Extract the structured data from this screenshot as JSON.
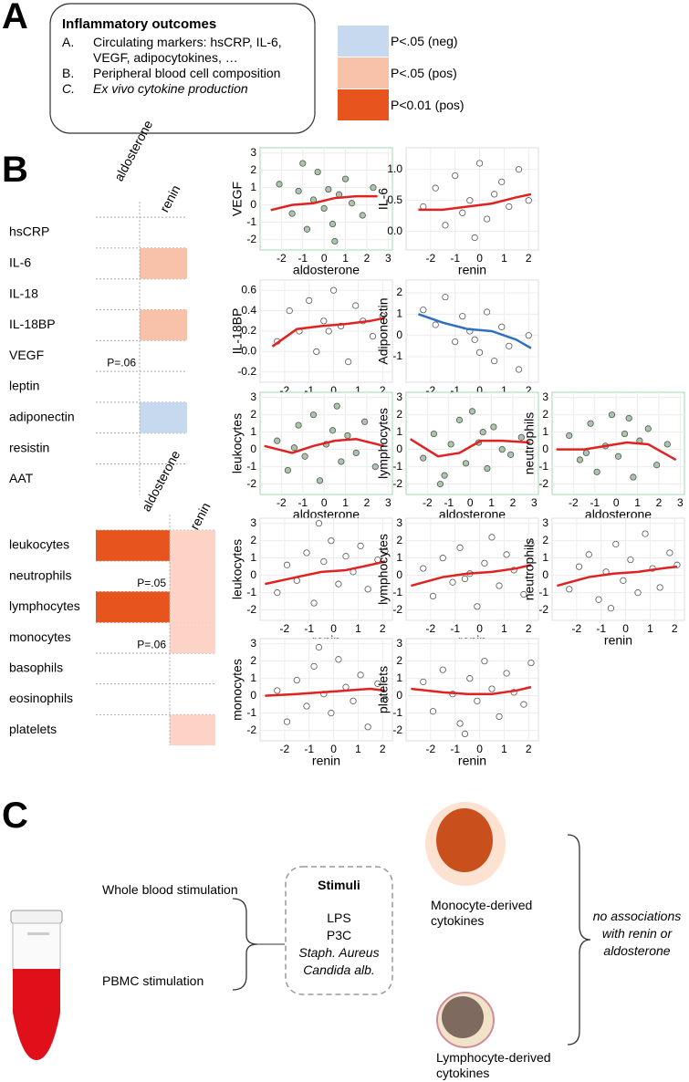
{
  "panel_a": {
    "label": "A",
    "title": "Inflammatory outcomes",
    "items": [
      {
        "marker": "A.",
        "text": "Circulating markers: hsCRP, IL-6, VEGF, adipocytokines, …"
      },
      {
        "marker": "B.",
        "text": "Peripheral blood cell composition"
      },
      {
        "marker": "C.",
        "text": "Ex vivo cytokine production"
      }
    ],
    "legend": [
      {
        "label": "P<.05 (neg)",
        "color": "#c6d9ef"
      },
      {
        "label": "P<.05 (pos)",
        "color": "#f8c1aa"
      },
      {
        "label": "P<0.01 (pos)",
        "color": "#e8541e"
      }
    ]
  },
  "panel_b": {
    "label": "B",
    "table1": {
      "columns": [
        "aldosterone",
        "renin"
      ],
      "rows": [
        "hsCRP",
        "IL-6",
        "IL-18",
        "IL-18BP",
        "VEGF",
        "leptin",
        "adiponectin",
        "resistin",
        "AAT"
      ],
      "cells": [
        {
          "row": 1,
          "col": 1,
          "color": "#f8c1aa"
        },
        {
          "row": 3,
          "col": 1,
          "color": "#f8c1aa"
        },
        {
          "row": 6,
          "col": 1,
          "color": "#c6d9ef"
        }
      ],
      "notes": [
        {
          "row": 4,
          "col": 0,
          "text": "P=.06"
        }
      ]
    },
    "table2": {
      "columns": [
        "aldosterone",
        "renin"
      ],
      "rows": [
        "leukocytes",
        "neutrophils",
        "lymphocytes",
        "monocytes",
        "basophils",
        "eosinophils",
        "platelets"
      ],
      "cells": [
        {
          "row": 0,
          "col": 0,
          "color": "#e8541e"
        },
        {
          "row": 2,
          "col": 0,
          "color": "#e8541e"
        },
        {
          "row": 0,
          "col": 1,
          "color": "#fcd3c5"
        },
        {
          "row": 1,
          "col": 1,
          "color": "#fcd3c5"
        },
        {
          "row": 2,
          "col": 1,
          "color": "#fcd3c5"
        },
        {
          "row": 3,
          "col": 1,
          "color": "#fcd3c5"
        },
        {
          "row": 6,
          "col": 1,
          "color": "#fcd3c5"
        }
      ],
      "notes": [
        {
          "row": 1,
          "col": 0,
          "text": "P=.05"
        },
        {
          "row": 3,
          "col": 0,
          "text": "P=.06"
        }
      ]
    },
    "plots": [
      {
        "y_label": "VEGF",
        "x_label": "aldosterone",
        "border_color": "#9fd8b2",
        "point_color": "#a9c6aa",
        "line_color": "#e02222",
        "xlim": [
          -3,
          3.2
        ],
        "ylim": [
          -2.6,
          3.3
        ],
        "xticks": [
          -2,
          -1,
          0,
          1,
          2,
          3
        ],
        "yticks": [
          -2,
          -1,
          0,
          1,
          2,
          3
        ],
        "points": {
          "x": [
            -2.1,
            -1.5,
            -1.2,
            -0.8,
            -0.5,
            -0.3,
            0,
            0.2,
            0.4,
            0.7,
            1,
            1.3,
            1.8,
            2.3,
            -1,
            0.5
          ],
          "y": [
            1.2,
            -0.5,
            0.8,
            -1.4,
            0.3,
            1.9,
            -0.2,
            0.9,
            -1.1,
            0.6,
            1.5,
            0.1,
            -0.6,
            1,
            2.4,
            -2.1
          ]
        },
        "fit": {
          "x": [
            -2.5,
            -1.5,
            -0.5,
            0.5,
            1.5,
            2.5
          ],
          "y": [
            -0.3,
            0,
            0.1,
            0.4,
            0.5,
            0.5
          ]
        }
      },
      {
        "y_label": "IL-6",
        "x_label": "renin",
        "border_color": "#dddddd",
        "point_color": "#ffffff",
        "line_color": "#e02222",
        "xlim": [
          -3,
          2.4
        ],
        "ylim": [
          -0.3,
          1.35
        ],
        "xticks": [
          -2,
          -1,
          0,
          1,
          2
        ],
        "yticks": [
          {
            "value": 0,
            "label": "0.0"
          },
          {
            "value": 0.5,
            "label": "0.5"
          },
          {
            "value": 1,
            "label": "1.0"
          }
        ],
        "points": {
          "x": [
            -2.3,
            -1.8,
            -1.4,
            -1,
            -0.7,
            -0.4,
            0,
            0.3,
            0.6,
            0.9,
            1.2,
            1.6,
            2,
            -0.2
          ],
          "y": [
            0.4,
            0.7,
            0.1,
            0.9,
            0.3,
            0.5,
            1.1,
            0.2,
            0.6,
            0.8,
            0.4,
            1,
            0.5,
            -0.1
          ]
        },
        "fit": {
          "x": [
            -2.5,
            -1.5,
            -0.5,
            0.5,
            1.5,
            2.1
          ],
          "y": [
            0.35,
            0.35,
            0.4,
            0.45,
            0.55,
            0.6
          ]
        }
      },
      {
        "y_label": "IL-18BP",
        "x_label": "renin",
        "border_color": "#dddddd",
        "point_color": "#ffffff",
        "line_color": "#e02222",
        "xlim": [
          -3,
          2.4
        ],
        "ylim": [
          -0.3,
          0.7
        ],
        "xticks": [
          -2,
          -1,
          0,
          1,
          2
        ],
        "yticks": [
          -0.2,
          {
            "value": 0,
            "label": "0.0"
          },
          0.2,
          0.4,
          0.6
        ],
        "points": {
          "x": [
            -2.3,
            -1.8,
            -1.4,
            -1,
            -0.7,
            -0.4,
            0,
            0.3,
            0.6,
            0.9,
            1.2,
            1.6,
            2,
            -0.2
          ],
          "y": [
            0.1,
            0.4,
            0.2,
            0.5,
            0,
            0.3,
            0.6,
            0.25,
            -0.1,
            0.45,
            0.3,
            0.15,
            0.35,
            0.2
          ]
        },
        "fit": {
          "x": [
            -2.5,
            -1.5,
            -0.5,
            0.5,
            1.5,
            2.1
          ],
          "y": [
            0.05,
            0.22,
            0.25,
            0.27,
            0.3,
            0.33
          ]
        }
      },
      {
        "y_label": "Adiponectin",
        "x_label": "renin",
        "border_color": "#dddddd",
        "point_color": "#ffffff",
        "line_color": "#2f6fc0",
        "xlim": [
          -3,
          2.4
        ],
        "ylim": [
          -2.2,
          2.6
        ],
        "xticks": [
          -2,
          -1,
          0,
          1,
          2
        ],
        "yticks": [
          -1,
          0,
          1,
          2
        ],
        "points": {
          "x": [
            -2.3,
            -1.8,
            -1.4,
            -1,
            -0.7,
            -0.4,
            0,
            0.3,
            0.6,
            0.9,
            1.2,
            1.6,
            2,
            -0.2
          ],
          "y": [
            1.2,
            0.5,
            1.8,
            -0.3,
            0.9,
            0.2,
            -0.8,
            1.1,
            -1.2,
            0.4,
            -0.5,
            -1.6,
            0,
            -0.2
          ]
        },
        "fit": {
          "x": [
            -2.5,
            -1.5,
            -0.5,
            0.5,
            1.5,
            2.1
          ],
          "y": [
            1,
            0.6,
            0.3,
            0.2,
            -0.2,
            -0.6
          ]
        }
      },
      {
        "y_label": "leukocytes",
        "x_label": "aldosterone",
        "border_color": "#9fd8b2",
        "point_color": "#a9c6aa",
        "line_color": "#e02222",
        "xlim": [
          -3,
          3.2
        ],
        "ylim": [
          -2.6,
          3.3
        ],
        "xticks": [
          -2,
          -1,
          0,
          1,
          2,
          3
        ],
        "yticks": [
          -2,
          -1,
          0,
          1,
          2,
          3
        ],
        "points": {
          "x": [
            -2.2,
            -1.7,
            -1.2,
            -0.9,
            -0.5,
            -0.2,
            0.1,
            0.4,
            0.8,
            1.1,
            1.5,
            1.9,
            2.4,
            -1.4,
            0.6
          ],
          "y": [
            0.5,
            -1.2,
            1.4,
            -0.4,
            2,
            -1.8,
            0.3,
            1.1,
            -0.7,
            0.8,
            -0.2,
            1.6,
            -1,
            0.1,
            2.5
          ]
        },
        "fit": {
          "x": [
            -2.8,
            -1.5,
            -0.5,
            0.5,
            1.5,
            2.8
          ],
          "y": [
            0.2,
            -0.2,
            0.2,
            0.5,
            0.6,
            0.2
          ]
        }
      },
      {
        "y_label": "lymphocytes",
        "x_label": "aldosterone",
        "border_color": "#9fd8b2",
        "point_color": "#a9c6aa",
        "line_color": "#e02222",
        "xlim": [
          -3,
          3.2
        ],
        "ylim": [
          -2.6,
          3.3
        ],
        "xticks": [
          -2,
          -1,
          0,
          1,
          2,
          3
        ],
        "yticks": [
          -2,
          -1,
          0,
          1,
          2,
          3
        ],
        "points": {
          "x": [
            -2.2,
            -1.7,
            -1.2,
            -0.9,
            -0.5,
            -0.2,
            0.1,
            0.4,
            0.8,
            1.1,
            1.5,
            1.9,
            2.4,
            -1.4,
            0.6
          ],
          "y": [
            -0.5,
            0.9,
            -1.5,
            0.3,
            1.7,
            -0.8,
            2.2,
            0.4,
            -1.1,
            1.3,
            0,
            -0.3,
            0.7,
            -2,
            1
          ]
        },
        "fit": {
          "x": [
            -2.8,
            -1.5,
            -0.5,
            0.5,
            1.5,
            2.8
          ],
          "y": [
            0.6,
            -0.4,
            -0.2,
            0.5,
            0.5,
            0.4
          ]
        }
      },
      {
        "y_label": "neutrophils",
        "x_label": "aldosterone",
        "border_color": "#9fd8b2",
        "point_color": "#a9c6aa",
        "line_color": "#e02222",
        "xlim": [
          -3,
          3.2
        ],
        "ylim": [
          -2.6,
          3.3
        ],
        "xticks": [
          -2,
          -1,
          0,
          1,
          2,
          3
        ],
        "yticks": [
          -2,
          -1,
          0,
          1,
          2,
          3
        ],
        "points": {
          "x": [
            -2.2,
            -1.7,
            -1.2,
            -0.9,
            -0.5,
            -0.2,
            0.1,
            0.4,
            0.8,
            1.1,
            1.5,
            1.9,
            2.4,
            -1.4,
            0.6
          ],
          "y": [
            0.8,
            -0.6,
            1.5,
            -1.3,
            0.2,
            2,
            -0.4,
            0.9,
            -1.6,
            0.5,
            1.2,
            -0.9,
            0.3,
            -0.2,
            1.8
          ]
        },
        "fit": {
          "x": [
            -2.8,
            -1.5,
            -0.5,
            0.5,
            1.5,
            2.8
          ],
          "y": [
            0,
            0,
            0.2,
            0.4,
            0.3,
            -0.6
          ]
        }
      },
      {
        "y_label": "leukocytes",
        "x_label": "renin",
        "border_color": "#dddddd",
        "point_color": "#ffffff",
        "line_color": "#e02222",
        "xlim": [
          -3,
          2.4
        ],
        "ylim": [
          -2.6,
          3.3
        ],
        "xticks": [
          -2,
          -1,
          0,
          1,
          2
        ],
        "yticks": [
          -2,
          -1,
          0,
          1,
          2,
          3
        ],
        "points": {
          "x": [
            -2.3,
            -1.9,
            -1.5,
            -1.1,
            -0.8,
            -0.4,
            -0.1,
            0.2,
            0.5,
            0.8,
            1.1,
            1.4,
            1.8,
            2.1,
            -0.6
          ],
          "y": [
            -1,
            0.6,
            -0.3,
            1.3,
            -1.6,
            0.8,
            2,
            -0.5,
            1.1,
            0.2,
            1.7,
            -0.8,
            0.9,
            1.4,
            3
          ]
        },
        "fit": {
          "x": [
            -2.8,
            -1.5,
            -0.5,
            0.5,
            1.5,
            2.1
          ],
          "y": [
            -0.5,
            -0.1,
            0.2,
            0.3,
            0.6,
            0.8
          ]
        }
      },
      {
        "y_label": "lymphocytes",
        "x_label": "renin",
        "border_color": "#dddddd",
        "point_color": "#ffffff",
        "line_color": "#e02222",
        "xlim": [
          -3,
          2.4
        ],
        "ylim": [
          -2.6,
          3.3
        ],
        "xticks": [
          -2,
          -1,
          0,
          1,
          2
        ],
        "yticks": [
          -2,
          -1,
          0,
          1,
          2,
          3
        ],
        "points": {
          "x": [
            -2.3,
            -1.9,
            -1.5,
            -1.1,
            -0.8,
            -0.4,
            -0.1,
            0.2,
            0.5,
            0.8,
            1.1,
            1.4,
            1.8,
            2.1,
            -0.6
          ],
          "y": [
            0.4,
            -1.2,
            1,
            -0.4,
            1.6,
            0.1,
            -1.8,
            0.7,
            2.2,
            -0.6,
            1.2,
            0.3,
            -1.1,
            1.8,
            -0.2
          ]
        },
        "fit": {
          "x": [
            -2.8,
            -1.5,
            -0.5,
            0.5,
            1.5,
            2.1
          ],
          "y": [
            -0.6,
            -0.1,
            0.1,
            0.2,
            0.4,
            0.6
          ]
        }
      },
      {
        "y_label": "neutrophils",
        "x_label": "renin",
        "border_color": "#dddddd",
        "point_color": "#ffffff",
        "line_color": "#e02222",
        "xlim": [
          -3,
          2.4
        ],
        "ylim": [
          -2.6,
          3.3
        ],
        "xticks": [
          -2,
          -1,
          0,
          1,
          2
        ],
        "yticks": [
          -2,
          -1,
          0,
          1,
          2,
          3
        ],
        "points": {
          "x": [
            -2.3,
            -1.9,
            -1.5,
            -1.1,
            -0.8,
            -0.4,
            -0.1,
            0.2,
            0.5,
            0.8,
            1.1,
            1.4,
            1.8,
            2.1,
            -0.6
          ],
          "y": [
            -0.8,
            0.5,
            1.2,
            -1.4,
            0.2,
            1.8,
            -0.3,
            0.9,
            -1,
            2.4,
            0.4,
            -0.7,
            1.3,
            0.6,
            -1.9
          ]
        },
        "fit": {
          "x": [
            -2.8,
            -1.5,
            -0.5,
            0.5,
            1.5,
            2.1
          ],
          "y": [
            -0.6,
            -0.1,
            0.1,
            0.2,
            0.4,
            0.5
          ]
        }
      },
      {
        "y_label": "monocytes",
        "x_label": "renin",
        "border_color": "#dddddd",
        "point_color": "#ffffff",
        "line_color": "#e02222",
        "xlim": [
          -3,
          2.4
        ],
        "ylim": [
          -2.6,
          3.3
        ],
        "xticks": [
          -2,
          -1,
          0,
          1,
          2
        ],
        "yticks": [
          -2,
          -1,
          0,
          1,
          2,
          3
        ],
        "points": {
          "x": [
            -2.3,
            -1.9,
            -1.5,
            -1.1,
            -0.8,
            -0.4,
            -0.1,
            0.2,
            0.5,
            0.8,
            1.1,
            1.4,
            1.8,
            2.1,
            -0.6
          ],
          "y": [
            0.3,
            -1.5,
            0.9,
            -0.6,
            1.7,
            0.1,
            -1,
            2.1,
            0.5,
            -0.3,
            1.2,
            -1.8,
            0.7,
            -0.2,
            2.8
          ]
        },
        "fit": {
          "x": [
            -2.8,
            -1.5,
            -0.5,
            0.5,
            1.5,
            2.1
          ],
          "y": [
            0,
            0.1,
            0.2,
            0.3,
            0.4,
            0.3
          ]
        }
      },
      {
        "y_label": "platelets",
        "x_label": "renin",
        "border_color": "#dddddd",
        "point_color": "#ffffff",
        "line_color": "#e02222",
        "xlim": [
          -3,
          2.4
        ],
        "ylim": [
          -2.6,
          3.3
        ],
        "xticks": [
          -2,
          -1,
          0,
          1,
          2
        ],
        "yticks": [
          -2,
          -1,
          0,
          1,
          2,
          3
        ],
        "points": {
          "x": [
            -2.3,
            -1.9,
            -1.5,
            -1.1,
            -0.8,
            -0.4,
            -0.1,
            0.2,
            0.5,
            0.8,
            1.1,
            1.4,
            1.8,
            2.1,
            -0.6
          ],
          "y": [
            0.8,
            -0.9,
            1.5,
            0.1,
            -1.6,
            1,
            -0.3,
            2,
            0.4,
            -1.2,
            1.3,
            0.2,
            -0.5,
            1.9,
            -2.2
          ]
        },
        "fit": {
          "x": [
            -2.8,
            -1.5,
            -0.5,
            0.5,
            1.5,
            2.1
          ],
          "y": [
            0.4,
            0.2,
            0.1,
            0.1,
            0.3,
            0.5
          ]
        }
      }
    ]
  },
  "panel_c": {
    "label": "C",
    "whole_blood": "Whole blood stimulation",
    "pbmc": "PBMC stimulation",
    "stimuli_title": "Stimuli",
    "stimuli": [
      "LPS",
      "P3C",
      "Staph. Aureus",
      "Candida alb."
    ],
    "monocyte": "Monocyte-derived cytokines",
    "lymphocyte": "Lymphocyte-derived cytokines",
    "conclusion": "no associations with renin or aldosterone"
  }
}
